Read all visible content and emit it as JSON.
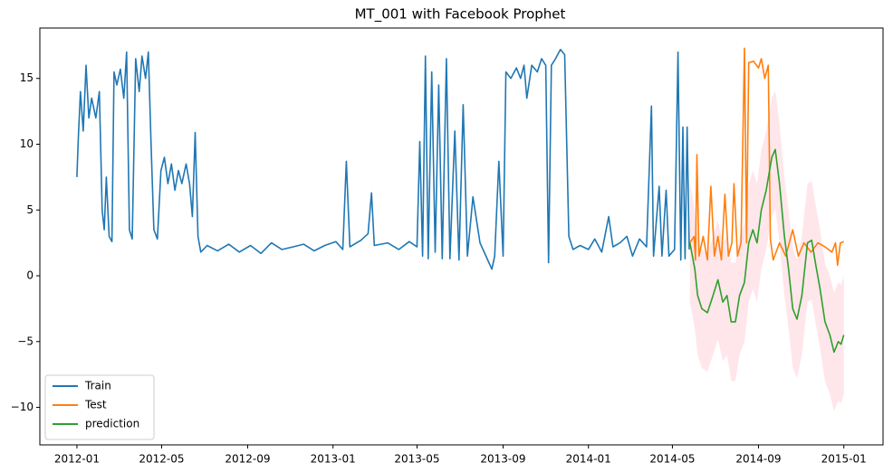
{
  "chart_data": {
    "type": "line",
    "title": "MT_001 with Facebook Prophet",
    "xlim": [
      "2011-11-09",
      "2015-02-26"
    ],
    "ylim": [
      -12.85,
      18.83
    ],
    "xticks": [
      {
        "value": "2012-01-01",
        "label": "2012-01"
      },
      {
        "value": "2012-05-01",
        "label": "2012-05"
      },
      {
        "value": "2012-09-01",
        "label": "2012-09"
      },
      {
        "value": "2013-01-01",
        "label": "2013-01"
      },
      {
        "value": "2013-05-01",
        "label": "2013-05"
      },
      {
        "value": "2013-09-01",
        "label": "2013-09"
      },
      {
        "value": "2014-01-01",
        "label": "2014-01"
      },
      {
        "value": "2014-05-01",
        "label": "2014-05"
      },
      {
        "value": "2014-09-01",
        "label": "2014-09"
      },
      {
        "value": "2015-01-01",
        "label": "2015-01"
      }
    ],
    "yticks": [
      {
        "value": -10,
        "label": "−10"
      },
      {
        "value": -5,
        "label": "−5"
      },
      0,
      5,
      10,
      15
    ],
    "legend": "lower left",
    "series": [
      {
        "name": "Train",
        "color": "#1f77b4",
        "x": [
          "2012-01-01",
          "2012-01-03",
          "2012-01-06",
          "2012-01-10",
          "2012-01-14",
          "2012-01-18",
          "2012-01-22",
          "2012-01-28",
          "2012-02-02",
          "2012-02-06",
          "2012-02-09",
          "2012-02-12",
          "2012-02-16",
          "2012-02-20",
          "2012-02-23",
          "2012-02-27",
          "2012-03-03",
          "2012-03-08",
          "2012-03-12",
          "2012-03-16",
          "2012-03-20",
          "2012-03-25",
          "2012-03-30",
          "2012-04-03",
          "2012-04-08",
          "2012-04-12",
          "2012-04-16",
          "2012-04-20",
          "2012-04-25",
          "2012-04-30",
          "2012-05-05",
          "2012-05-10",
          "2012-05-15",
          "2012-05-20",
          "2012-05-25",
          "2012-05-30",
          "2012-06-05",
          "2012-06-10",
          "2012-06-14",
          "2012-06-18",
          "2012-06-22",
          "2012-06-26",
          "2012-07-05",
          "2012-07-20",
          "2012-08-05",
          "2012-08-20",
          "2012-09-05",
          "2012-09-20",
          "2012-10-05",
          "2012-10-20",
          "2012-11-05",
          "2012-11-20",
          "2012-12-05",
          "2012-12-20",
          "2013-01-05",
          "2013-01-15",
          "2013-01-20",
          "2013-01-25",
          "2013-02-10",
          "2013-02-20",
          "2013-02-25",
          "2013-03-01",
          "2013-03-20",
          "2013-04-05",
          "2013-04-20",
          "2013-05-01",
          "2013-05-05",
          "2013-05-09",
          "2013-05-13",
          "2013-05-17",
          "2013-05-22",
          "2013-05-27",
          "2013-06-01",
          "2013-06-06",
          "2013-06-12",
          "2013-06-17",
          "2013-06-24",
          "2013-06-30",
          "2013-07-06",
          "2013-07-12",
          "2013-07-20",
          "2013-07-30",
          "2013-08-10",
          "2013-08-16",
          "2013-08-20",
          "2013-08-26",
          "2013-09-01",
          "2013-09-05",
          "2013-09-12",
          "2013-09-20",
          "2013-09-26",
          "2013-10-01",
          "2013-10-05",
          "2013-10-12",
          "2013-10-20",
          "2013-10-26",
          "2013-11-01",
          "2013-11-05",
          "2013-11-09",
          "2013-11-15",
          "2013-11-22",
          "2013-11-28",
          "2013-12-04",
          "2013-12-10",
          "2013-12-20",
          "2014-01-01",
          "2014-01-10",
          "2014-01-20",
          "2014-01-30",
          "2014-02-05",
          "2014-02-15",
          "2014-02-25",
          "2014-03-05",
          "2014-03-15",
          "2014-03-25",
          "2014-04-01",
          "2014-04-04",
          "2014-04-12",
          "2014-04-16",
          "2014-04-22",
          "2014-04-26",
          "2014-05-04",
          "2014-05-09",
          "2014-05-13",
          "2014-05-16",
          "2014-05-19",
          "2014-05-22",
          "2014-05-25"
        ],
        "values": [
          7.5,
          10.5,
          14,
          11,
          16,
          12,
          13.5,
          12,
          14,
          5,
          3.5,
          7.5,
          3,
          2.6,
          15.5,
          14.5,
          15.7,
          13.5,
          17,
          3.5,
          2.8,
          16.5,
          14,
          16.7,
          15,
          17,
          10,
          3.5,
          2.8,
          8,
          9,
          7,
          8.5,
          6.5,
          8,
          7,
          8.5,
          7,
          4.5,
          10.9,
          3,
          1.8,
          2.3,
          1.9,
          2.4,
          1.8,
          2.3,
          1.7,
          2.5,
          2,
          2.2,
          2.4,
          1.9,
          2.3,
          2.6,
          2,
          8.7,
          2.2,
          2.7,
          3.2,
          6.3,
          2.3,
          2.5,
          2,
          2.6,
          2.2,
          10.2,
          1.5,
          16.7,
          1.3,
          15.5,
          1.8,
          14.5,
          1.3,
          16.5,
          1.3,
          11,
          1.2,
          13,
          1.5,
          6,
          2.5,
          1.2,
          0.5,
          1.5,
          8.7,
          1.5,
          15.5,
          15,
          15.8,
          15,
          16,
          13.5,
          16,
          15.5,
          16.5,
          16,
          1,
          16,
          16.5,
          17.2,
          16.8,
          3,
          2,
          2.3,
          2,
          2.8,
          1.8,
          4.5,
          2.2,
          2.5,
          3,
          1.5,
          2.8,
          2.2,
          12.9,
          1.5,
          6.8,
          1.5,
          6.5,
          1.5,
          2,
          17,
          1.2,
          11.3,
          1.3,
          11.3,
          2
        ]
      },
      {
        "name": "Test",
        "color": "#ff7f0e",
        "x": [
          "2014-05-26",
          "2014-06-01",
          "2014-06-03",
          "2014-06-05",
          "2014-06-08",
          "2014-06-14",
          "2014-06-20",
          "2014-06-25",
          "2014-06-30",
          "2014-07-05",
          "2014-07-10",
          "2014-07-15",
          "2014-07-20",
          "2014-07-25",
          "2014-07-28",
          "2014-08-02",
          "2014-08-07",
          "2014-08-12",
          "2014-08-15",
          "2014-08-18",
          "2014-08-25",
          "2014-09-01",
          "2014-09-05",
          "2014-09-10",
          "2014-09-15",
          "2014-09-18",
          "2014-09-22",
          "2014-10-01",
          "2014-10-10",
          "2014-10-20",
          "2014-10-28",
          "2014-11-05",
          "2014-11-15",
          "2014-11-25",
          "2014-12-05",
          "2014-12-15",
          "2014-12-20",
          "2014-12-23",
          "2014-12-27",
          "2015-01-01"
        ],
        "values": [
          2.5,
          3,
          1.2,
          9.2,
          1.5,
          3,
          1.2,
          6.8,
          1.5,
          3,
          1.2,
          6.2,
          1.5,
          2.5,
          7,
          1.5,
          2.5,
          17.3,
          2.5,
          16.2,
          16.3,
          15.8,
          16.5,
          15,
          16,
          2.8,
          1.2,
          2.5,
          1.5,
          3.5,
          1.5,
          2.5,
          1.8,
          2.5,
          2.2,
          1.8,
          2.5,
          0.8,
          2.5,
          2.6
        ]
      },
      {
        "name": "prediction",
        "color": "#2ca02c",
        "band_color": "#ffc0cb",
        "x": [
          "2014-05-26",
          "2014-06-02",
          "2014-06-06",
          "2014-06-12",
          "2014-06-20",
          "2014-06-28",
          "2014-07-05",
          "2014-07-12",
          "2014-07-18",
          "2014-07-24",
          "2014-07-30",
          "2014-08-05",
          "2014-08-12",
          "2014-08-18",
          "2014-08-24",
          "2014-08-30",
          "2014-09-05",
          "2014-09-12",
          "2014-09-20",
          "2014-09-25",
          "2014-10-01",
          "2014-10-08",
          "2014-10-14",
          "2014-10-20",
          "2014-10-26",
          "2014-11-02",
          "2014-11-10",
          "2014-11-16",
          "2014-11-22",
          "2014-11-28",
          "2014-12-05",
          "2014-12-12",
          "2014-12-18",
          "2014-12-24",
          "2014-12-28",
          "2015-01-01"
        ],
        "values": [
          2.5,
          0.5,
          -1.5,
          -2.5,
          -2.8,
          -1.5,
          -0.3,
          -2,
          -1.5,
          -3.5,
          -3.5,
          -1.5,
          -0.5,
          2.5,
          3.5,
          2.5,
          5,
          6.5,
          9,
          9.6,
          7,
          3,
          0.5,
          -2.5,
          -3.3,
          -1.5,
          2.5,
          2.7,
          0.8,
          -1,
          -3.5,
          -4.5,
          -5.8,
          -5,
          -5.2,
          -4.5
        ],
        "upper": [
          7,
          5,
          3,
          2,
          1.7,
          3,
          4.2,
          2.5,
          3,
          1,
          1,
          3,
          4,
          7,
          8,
          7,
          9.5,
          11,
          13.5,
          14.1,
          11.5,
          7.5,
          5,
          2,
          1.2,
          3,
          7,
          7.2,
          5.3,
          3.5,
          1,
          0,
          -1.3,
          -0.5,
          -0.7,
          0
        ],
        "lower": [
          -2,
          -4,
          -6,
          -7,
          -7.3,
          -6,
          -4.8,
          -6.5,
          -6,
          -8,
          -8,
          -6,
          -5,
          -2,
          -1,
          -2,
          0.5,
          2,
          4.5,
          5.1,
          2.5,
          -1.5,
          -4,
          -7,
          -7.8,
          -6,
          -2,
          -1.8,
          -3.7,
          -5.5,
          -8,
          -9,
          -10.3,
          -9.5,
          -9.7,
          -9
        ]
      }
    ]
  }
}
